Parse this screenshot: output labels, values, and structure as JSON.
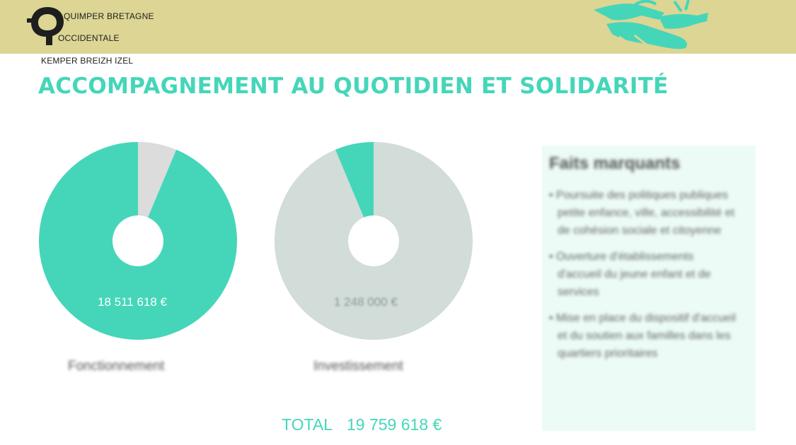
{
  "header": {
    "logo_lines": [
      "QUIMPER BRETAGNE",
      "OCCIDENTALE",
      "KEMPER BREIZH IZEL"
    ],
    "logo_icon": "quimper-q-logo-icon",
    "illustration_icon": "handshake-icon",
    "colors": {
      "band": "#dcd594",
      "accent": "#45d6b9"
    }
  },
  "page_title": "ACCOMPAGNEMENT AU QUOTIDIEN ET SOLIDARITÉ",
  "chart_data": [
    {
      "type": "pie",
      "title": "",
      "slices": [
        {
          "label": "18 511 618 €",
          "value": 18511618,
          "color": "#45d6b9"
        },
        {
          "label": "",
          "value": 1248000,
          "color": "#dcdcdc"
        }
      ],
      "caption": "Fonctionnement"
    },
    {
      "type": "pie",
      "title": "",
      "slices": [
        {
          "label": "1 248 000 €",
          "value": 1248000,
          "color": "#45d6b9"
        },
        {
          "label": "",
          "value": 18511618,
          "color": "#d2dcd8"
        }
      ],
      "caption": "Investissement"
    }
  ],
  "total": {
    "label": "TOTAL",
    "value": "19 759 618 €"
  },
  "panel": {
    "title": "Faits marquants",
    "items": [
      "• Poursuite des politiques publiques petite enfance, ville, accessibilité et de cohésion sociale et citoyenne",
      "• Ouverture d'établissements d'accueil du jeune enfant et de services",
      "• Mise en place du dispositif d'accueil et du soutien aux familles dans les quartiers prioritaires"
    ]
  }
}
